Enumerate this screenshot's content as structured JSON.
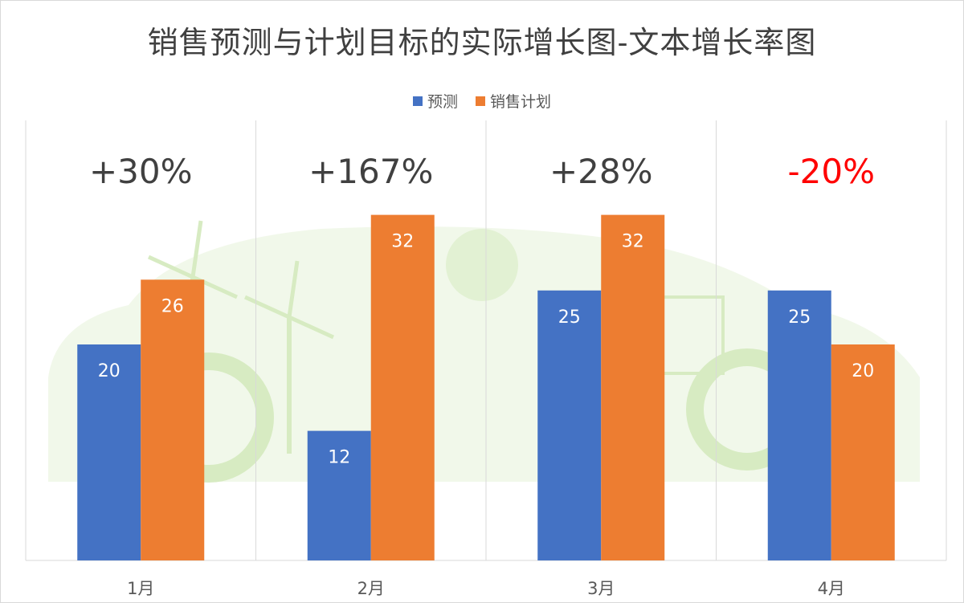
{
  "title": "销售预测与计划目标的实际增长图-文本增长率图",
  "colors": {
    "forecast": "#4472C4",
    "plan": "#ED7D31",
    "growth_positive": "#404040",
    "growth_negative": "#FF0000",
    "gridline": "#d9d9d9",
    "background_art": "#a8d47a"
  },
  "legend": {
    "forecast_label": "预测",
    "plan_label": "销售计划"
  },
  "chart_data": {
    "type": "bar",
    "categories": [
      "1月",
      "2月",
      "3月",
      "4月"
    ],
    "series": [
      {
        "name": "预测",
        "values": [
          20,
          12,
          25,
          25
        ]
      },
      {
        "name": "销售计划",
        "values": [
          26,
          32,
          32,
          20
        ]
      }
    ],
    "growth_labels": [
      "+30%",
      "+167%",
      "+28%",
      "-20%"
    ],
    "ylim": [
      0,
      40
    ],
    "legend_position": "top",
    "grid": "vertical separators between categories",
    "background": "green eco car illustration with wind turbines, sun and solar panels"
  }
}
